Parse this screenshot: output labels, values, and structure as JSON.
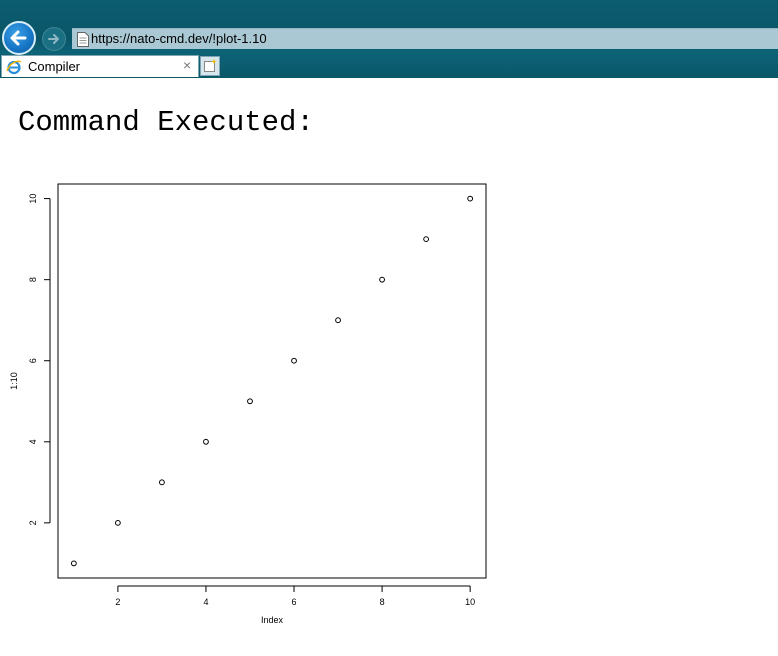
{
  "browser": {
    "url": "https://nato-cmd.dev/!plot-1.10",
    "tab_title": "Compiler",
    "tab_close": "×"
  },
  "page": {
    "heading": "Command Executed:"
  },
  "chart_data": {
    "type": "scatter",
    "title": "",
    "xlabel": "Index",
    "ylabel": "1:10",
    "x": [
      1,
      2,
      3,
      4,
      5,
      6,
      7,
      8,
      9,
      10
    ],
    "y": [
      1,
      2,
      3,
      4,
      5,
      6,
      7,
      8,
      9,
      10
    ],
    "xlim": [
      0.64,
      10.36
    ],
    "ylim": [
      0.64,
      10.36
    ],
    "xticks": [
      2,
      4,
      6,
      8,
      10
    ],
    "yticks": [
      2,
      4,
      6,
      8,
      10
    ],
    "marker": "open-circle",
    "grid": false,
    "legend": "none"
  }
}
